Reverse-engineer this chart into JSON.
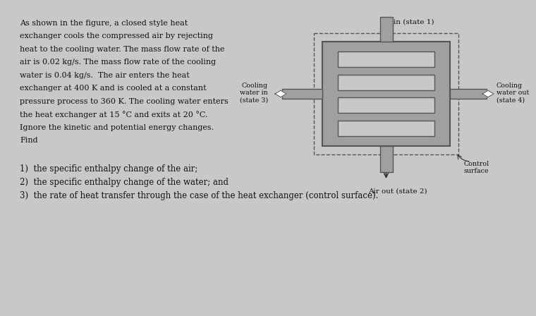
{
  "bg_color": "#c8c8c8",
  "text_color": "#111111",
  "paragraph_lines": [
    "As shown in the figure, a closed style heat",
    "exchanger cools the compressed air by rejecting",
    "heat to the cooling water. The mass flow rate of the",
    "air is 0.02 kg/s. The mass flow rate of the cooling",
    "water is 0.04 kg/s.  The air enters the heat",
    "exchanger at 400 K and is cooled at a constant",
    "pressure process to 360 K. The cooling water enters",
    "the heat exchanger at 15 °C and exits at 20 °C.",
    "Ignore the kinetic and potential energy changes.",
    "Find"
  ],
  "list_items": [
    "1)  the specific enthalpy change of the air;",
    "2)  the specific enthalpy change of the water; and",
    "3)  the rate of heat transfer through the case of the heat exchanger (control surface)."
  ],
  "diagram": {
    "air_in_label": "Air in (state 1)",
    "air_out_label": "Air out (state 2)",
    "cooling_in_label": "Cooling\nwater in\n(state 3)",
    "cooling_out_label": "Cooling\nwater out\n(state 4)",
    "control_label": "Control\nsurface"
  },
  "shell_color": "#a0a0a0",
  "tube_color": "#c8c8c8",
  "tube_inner_color": "#b8b8b8"
}
